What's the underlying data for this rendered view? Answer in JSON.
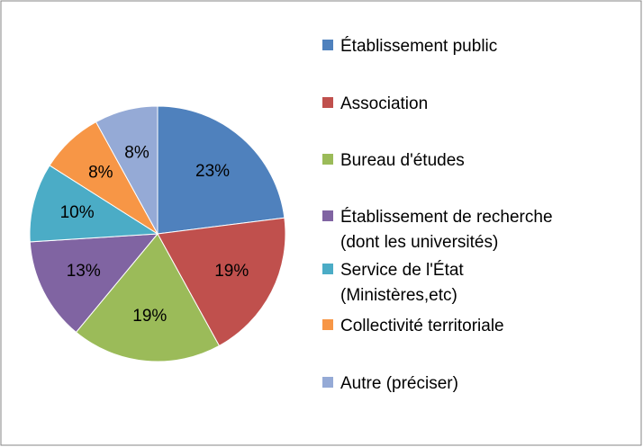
{
  "chart_data": {
    "type": "pie",
    "categories": [
      "Établissement public",
      "Association",
      "Bureau d'études",
      "Établissement de recherche (dont les universités)",
      "Service de l'État (Ministères,etc)",
      "Collectivité territoriale",
      "Autre (préciser)"
    ],
    "values": [
      23,
      19,
      19,
      13,
      10,
      8,
      8
    ],
    "value_labels": [
      "23%",
      "19%",
      "19%",
      "13%",
      "10%",
      "8%",
      "8%"
    ],
    "colors": [
      "#4f81bd",
      "#c0504d",
      "#9bbb59",
      "#8064a2",
      "#4bacc6",
      "#f79646",
      "#95aad6"
    ],
    "legend": "right"
  }
}
